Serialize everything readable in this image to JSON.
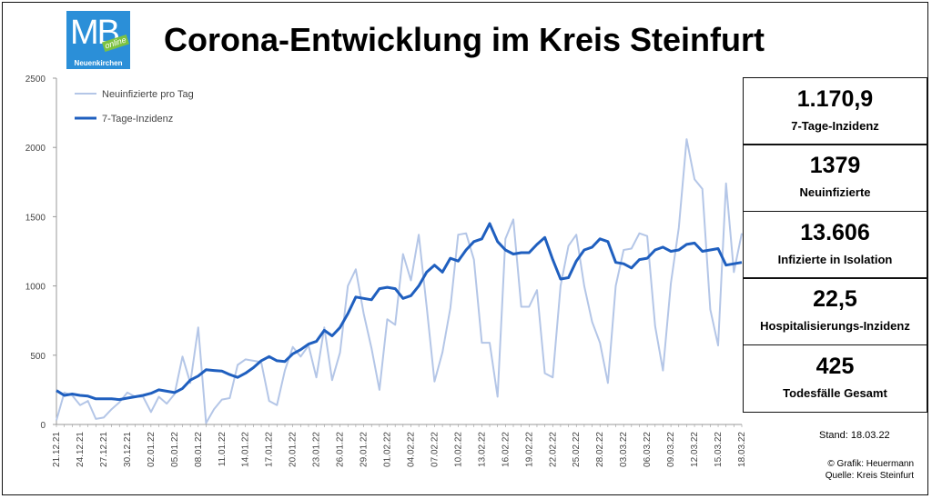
{
  "title": "Corona-Entwicklung im Kreis Steinfurt",
  "logo": {
    "text": "MB",
    "badge": "online",
    "town": "Neuenkirchen"
  },
  "stats": [
    {
      "value": "1.170,9",
      "label": "7-Tage-Inzidenz"
    },
    {
      "value": "1379",
      "label": "Neuinfizierte"
    },
    {
      "value": "13.606",
      "label": "Infizierte in Isolation"
    },
    {
      "value": "22,5",
      "label": "Hospitalisierungs-Inzidenz"
    },
    {
      "value": "425",
      "label": "Todesfälle Gesamt"
    }
  ],
  "stand": "Stand: 18.03.22",
  "credit_graphic": "© Grafik: Heuermann",
  "credit_source": "Quelle: Kreis Steinfurt",
  "colors": {
    "daily": "#b4c6e7",
    "incidence": "#1f5fbf"
  },
  "chart_data": {
    "type": "line",
    "title": "",
    "xlabel": "",
    "ylabel": "",
    "ylim": [
      0,
      2500
    ],
    "yticks": [
      0,
      500,
      1000,
      1500,
      2000,
      2500
    ],
    "grid": false,
    "legend_position": "top-left",
    "x": [
      "21.12.21",
      "22.12.21",
      "23.12.21",
      "24.12.21",
      "25.12.21",
      "26.12.21",
      "27.12.21",
      "28.12.21",
      "29.12.21",
      "30.12.21",
      "31.12.21",
      "01.01.22",
      "02.01.22",
      "03.01.22",
      "04.01.22",
      "05.01.22",
      "06.01.22",
      "07.01.22",
      "08.01.22",
      "09.01.22",
      "10.01.22",
      "11.01.22",
      "12.01.22",
      "13.01.22",
      "14.01.22",
      "15.01.22",
      "16.01.22",
      "17.01.22",
      "18.01.22",
      "19.01.22",
      "20.01.22",
      "21.01.22",
      "22.01.22",
      "23.01.22",
      "24.01.22",
      "25.01.22",
      "26.01.22",
      "27.01.22",
      "28.01.22",
      "29.01.22",
      "30.01.22",
      "31.01.22",
      "01.02.22",
      "02.02.22",
      "03.02.22",
      "04.02.22",
      "05.02.22",
      "06.02.22",
      "07.02.22",
      "08.02.22",
      "09.02.22",
      "10.02.22",
      "11.02.22",
      "12.02.22",
      "13.02.22",
      "14.02.22",
      "15.02.22",
      "16.02.22",
      "17.02.22",
      "18.02.22",
      "19.02.22",
      "20.02.22",
      "21.02.22",
      "22.02.22",
      "23.02.22",
      "24.02.22",
      "25.02.22",
      "26.02.22",
      "27.02.22",
      "28.02.22",
      "01.03.22",
      "02.03.22",
      "03.03.22",
      "04.03.22",
      "05.03.22",
      "06.03.22",
      "07.03.22",
      "08.03.22",
      "09.03.22",
      "10.03.22",
      "11.03.22",
      "12.03.22",
      "13.03.22",
      "14.03.22",
      "15.03.22",
      "16.03.22",
      "17.03.22",
      "18.03.22"
    ],
    "xtick_labels": [
      "21.12.21",
      "24.12.21",
      "27.12.21",
      "30.12.21",
      "02.01.22",
      "05.01.22",
      "08.01.22",
      "11.01.22",
      "14.01.22",
      "17.01.22",
      "20.01.22",
      "23.01.22",
      "26.01.22",
      "29.01.22",
      "01.02.22",
      "04.02.22",
      "07.02.22",
      "10.02.22",
      "13.02.22",
      "16.02.22",
      "19.02.22",
      "22.02.22",
      "25.02.22",
      "28.02.22",
      "03.03.22",
      "06.03.22",
      "09.03.22",
      "12.03.22",
      "15.03.22",
      "18.03.22"
    ],
    "series": [
      {
        "name": "Neuinfizierte pro Tag",
        "values": [
          30,
          230,
          210,
          140,
          170,
          40,
          50,
          110,
          160,
          230,
          200,
          200,
          90,
          200,
          150,
          220,
          490,
          300,
          700,
          10,
          110,
          180,
          190,
          430,
          470,
          460,
          450,
          170,
          140,
          390,
          560,
          490,
          570,
          340,
          700,
          320,
          520,
          1000,
          1120,
          800,
          550,
          250,
          760,
          720,
          1230,
          1040,
          1370,
          850,
          310,
          520,
          840,
          1370,
          1380,
          1190,
          590,
          590,
          200,
          1340,
          1480,
          850,
          850,
          970,
          370,
          340,
          1000,
          1290,
          1370,
          1000,
          740,
          590,
          300,
          1000,
          1260,
          1270,
          1380,
          1360,
          710,
          390,
          1020,
          1420,
          2060,
          1770,
          1700,
          830,
          570,
          1740,
          1100,
          1380
        ]
      },
      {
        "name": "7-Tage-Inzidenz",
        "values": [
          245,
          210,
          220,
          210,
          205,
          185,
          185,
          185,
          180,
          190,
          200,
          210,
          225,
          250,
          240,
          230,
          260,
          320,
          350,
          395,
          390,
          385,
          360,
          340,
          370,
          410,
          460,
          490,
          460,
          455,
          510,
          540,
          580,
          600,
          680,
          640,
          700,
          800,
          920,
          910,
          900,
          980,
          990,
          980,
          910,
          930,
          1000,
          1100,
          1150,
          1100,
          1200,
          1180,
          1260,
          1320,
          1340,
          1450,
          1320,
          1260,
          1230,
          1240,
          1240,
          1300,
          1350,
          1190,
          1050,
          1060,
          1180,
          1260,
          1280,
          1340,
          1320,
          1170,
          1160,
          1130,
          1190,
          1200,
          1260,
          1280,
          1250,
          1260,
          1300,
          1310,
          1250,
          1260,
          1270,
          1150,
          1160,
          1170
        ]
      }
    ]
  }
}
